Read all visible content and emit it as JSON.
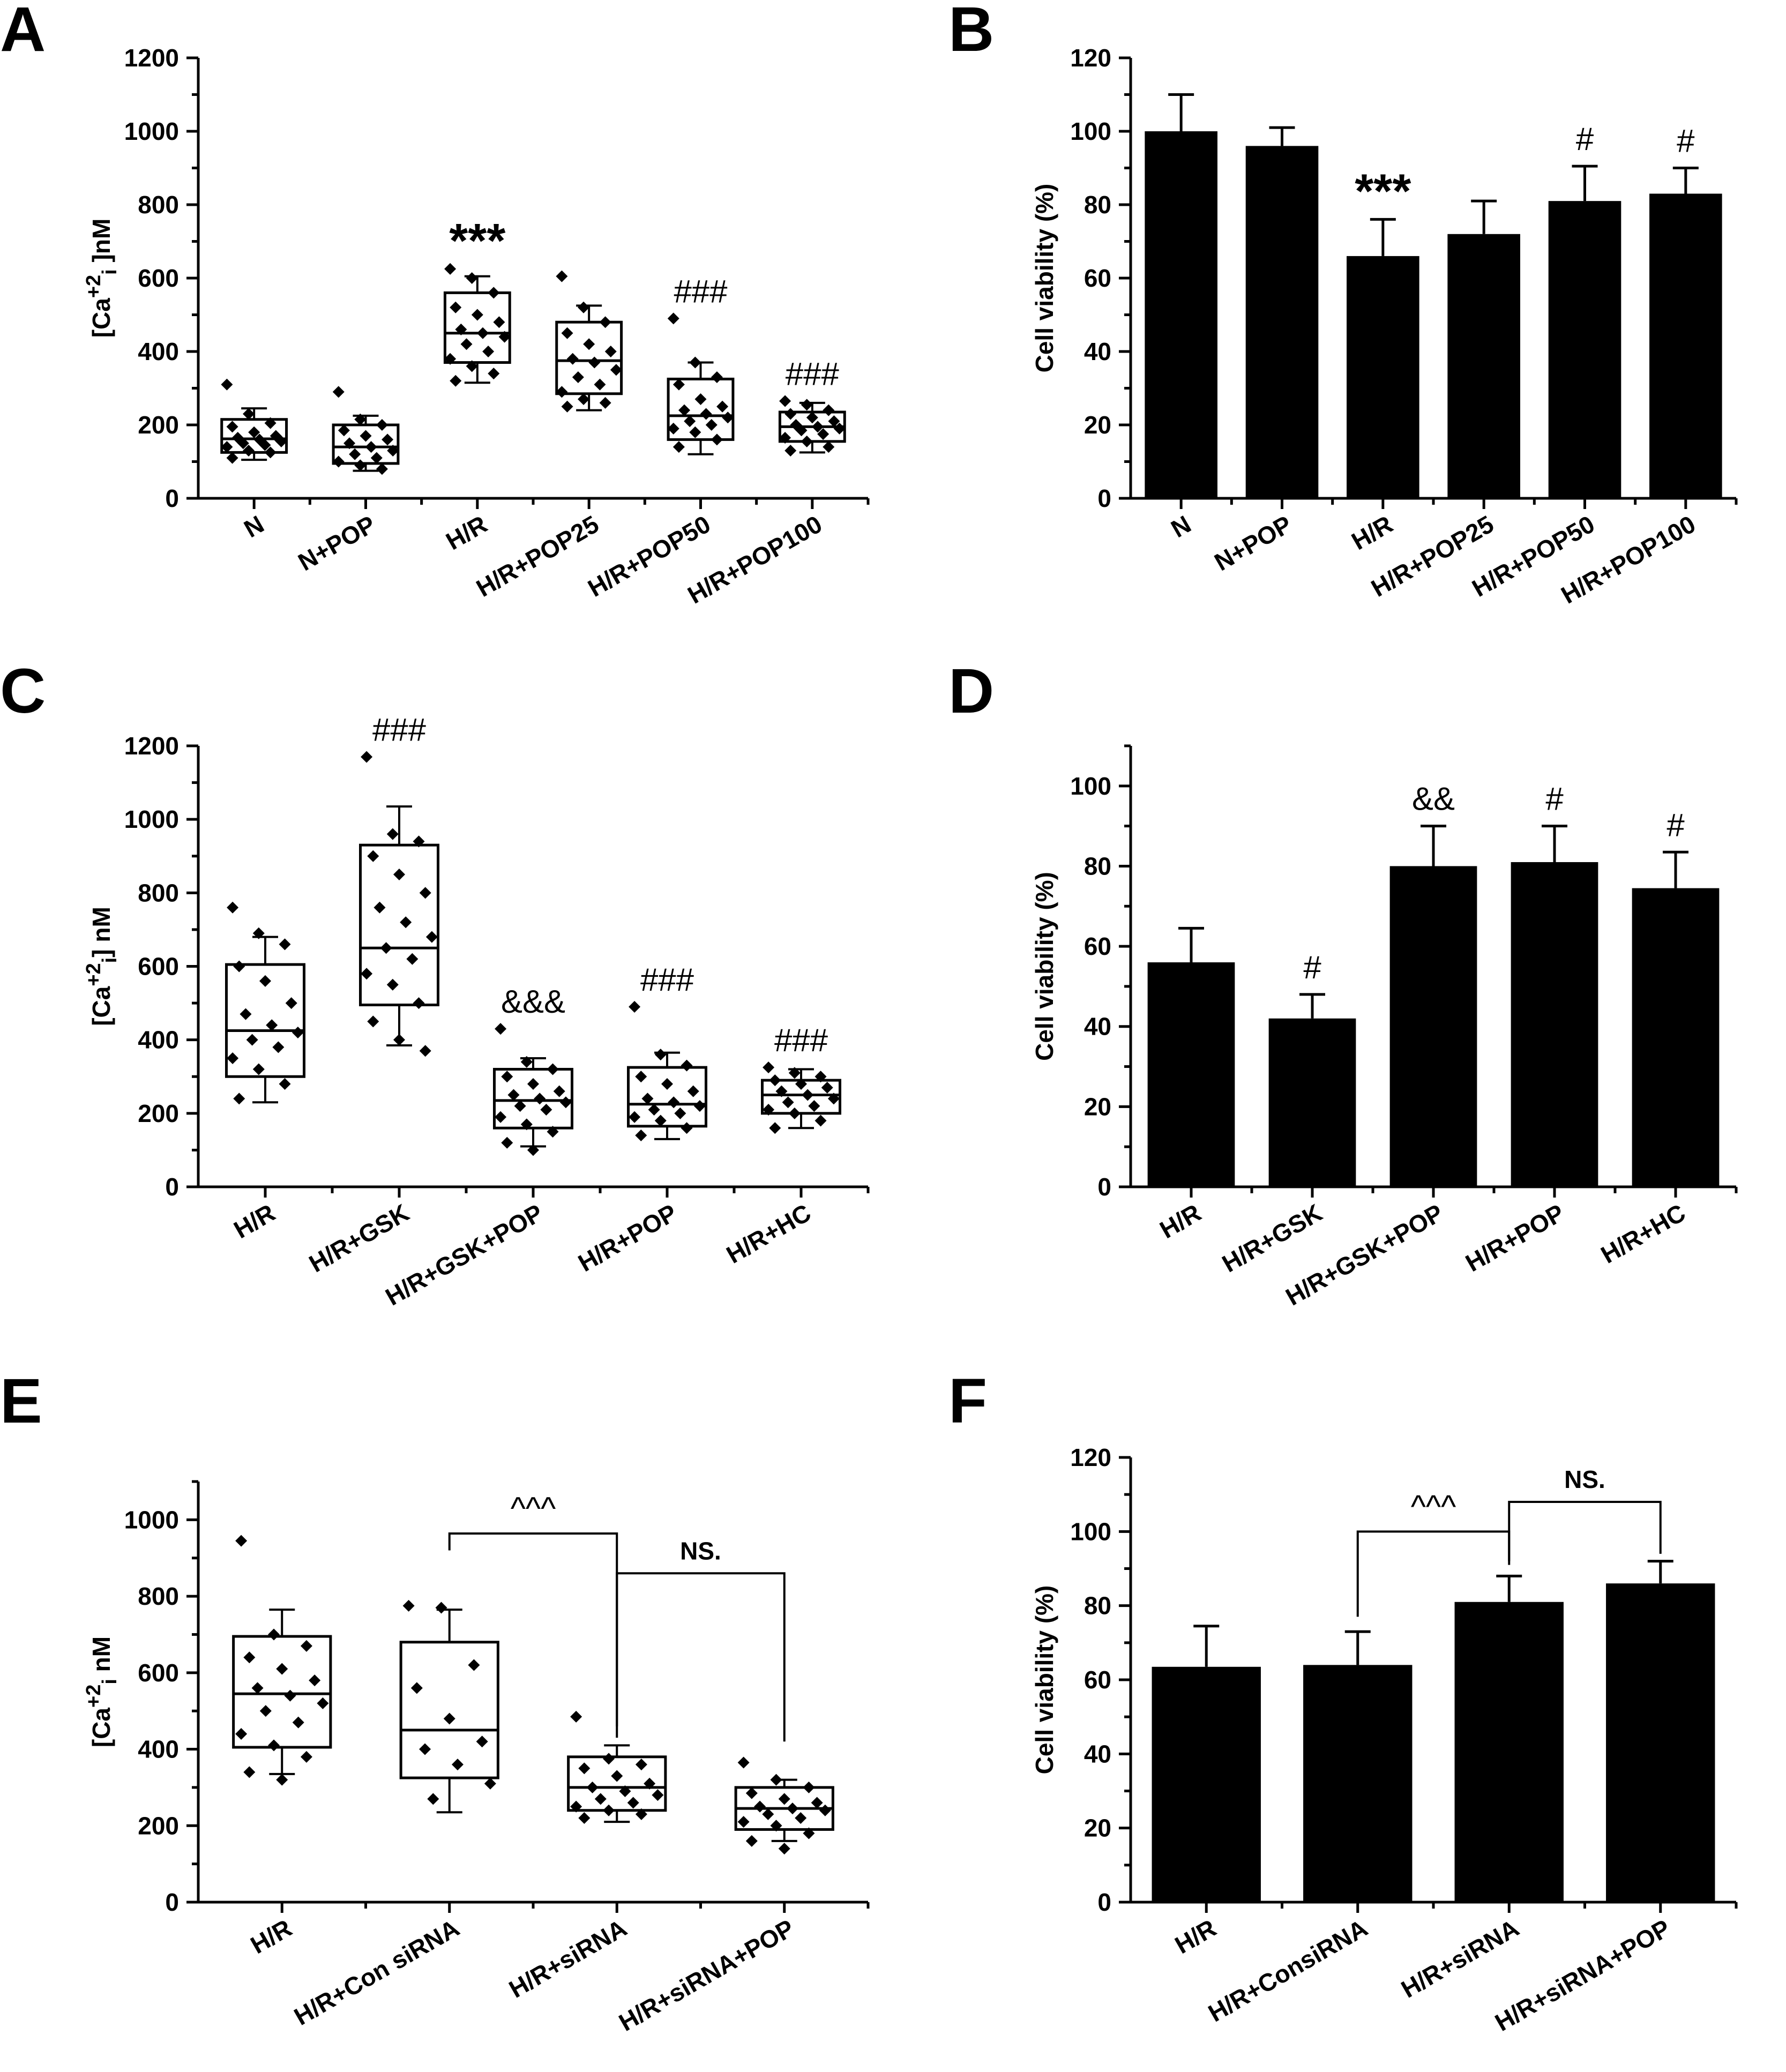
{
  "chart_data": [
    {
      "panel": "A",
      "type": "box",
      "ylabel_main": "[Ca",
      "ylabel_sup": "+2",
      "ylabel_sub": "i",
      "ylabel_tail": " ]nM",
      "ylim": [
        0,
        1200
      ],
      "yticks": [
        0,
        200,
        400,
        600,
        800,
        1000,
        1200
      ],
      "categories": [
        "N",
        "N+POP",
        "H/R",
        "H/R+POP25",
        "H/R+POP50",
        "H/R+POP100"
      ],
      "boxes": [
        {
          "q1": 125,
          "median": 162,
          "q3": 215,
          "lo": 105,
          "hi": 245,
          "points": [
            310,
            230,
            205,
            195,
            180,
            170,
            165,
            160,
            155,
            150,
            145,
            140,
            130,
            125,
            110
          ]
        },
        {
          "q1": 95,
          "median": 140,
          "q3": 200,
          "lo": 75,
          "hi": 225,
          "points": [
            290,
            215,
            200,
            185,
            170,
            160,
            150,
            140,
            130,
            120,
            110,
            100,
            90,
            80
          ]
        },
        {
          "q1": 370,
          "median": 450,
          "q3": 560,
          "lo": 315,
          "hi": 605,
          "points": [
            625,
            600,
            560,
            520,
            500,
            480,
            460,
            450,
            440,
            420,
            400,
            380,
            360,
            340,
            320
          ]
        },
        {
          "q1": 285,
          "median": 375,
          "q3": 480,
          "lo": 240,
          "hi": 525,
          "points": [
            605,
            520,
            480,
            450,
            420,
            400,
            380,
            370,
            350,
            330,
            310,
            290,
            270,
            260,
            250
          ]
        },
        {
          "q1": 160,
          "median": 225,
          "q3": 325,
          "lo": 120,
          "hi": 370,
          "points": [
            490,
            370,
            330,
            310,
            270,
            250,
            240,
            230,
            220,
            210,
            200,
            190,
            180,
            160,
            140
          ]
        },
        {
          "q1": 155,
          "median": 195,
          "q3": 235,
          "lo": 125,
          "hi": 260,
          "points": [
            265,
            255,
            240,
            230,
            220,
            210,
            200,
            195,
            190,
            185,
            175,
            165,
            155,
            140,
            130
          ]
        }
      ],
      "annotations": [
        "",
        "",
        "***",
        "",
        "###",
        "###"
      ]
    },
    {
      "panel": "B",
      "type": "bar",
      "ylabel": "Cell viability (%)",
      "ylim": [
        0,
        120
      ],
      "yticks": [
        0,
        20,
        40,
        60,
        80,
        100,
        120
      ],
      "categories": [
        "N",
        "N+POP",
        "H/R",
        "H/R+POP25",
        "H/R+POP50",
        "H/R+POP100"
      ],
      "values": [
        100,
        96,
        66,
        72,
        81,
        83
      ],
      "errors": [
        10,
        5,
        10,
        9,
        9.5,
        7
      ],
      "annotations": [
        "",
        "",
        "***",
        "",
        "#",
        "#"
      ]
    },
    {
      "panel": "C",
      "type": "box",
      "ylabel_main": "[Ca",
      "ylabel_sup": "+2",
      "ylabel_sub": "i",
      "ylabel_tail": "]  nM",
      "ylim": [
        0,
        1200
      ],
      "yticks": [
        0,
        200,
        400,
        600,
        800,
        1000,
        1200
      ],
      "categories": [
        "H/R",
        "H/R+GSK",
        "H/R+GSK+POP",
        "H/R+POP",
        "H/R+HC"
      ],
      "boxes": [
        {
          "q1": 300,
          "median": 425,
          "q3": 605,
          "lo": 230,
          "hi": 680,
          "points": [
            760,
            690,
            660,
            600,
            560,
            500,
            470,
            440,
            420,
            400,
            380,
            350,
            320,
            280,
            240
          ]
        },
        {
          "q1": 495,
          "median": 650,
          "q3": 930,
          "lo": 385,
          "hi": 1035,
          "points": [
            1170,
            960,
            940,
            900,
            850,
            800,
            760,
            720,
            680,
            650,
            620,
            580,
            550,
            500,
            450,
            400,
            370
          ]
        },
        {
          "q1": 160,
          "median": 235,
          "q3": 320,
          "lo": 110,
          "hi": 350,
          "points": [
            430,
            340,
            320,
            300,
            280,
            260,
            250,
            240,
            230,
            220,
            210,
            190,
            170,
            150,
            120,
            100
          ]
        },
        {
          "q1": 165,
          "median": 225,
          "q3": 325,
          "lo": 130,
          "hi": 365,
          "points": [
            490,
            360,
            330,
            300,
            280,
            260,
            240,
            230,
            220,
            210,
            200,
            190,
            180,
            160,
            140
          ]
        },
        {
          "q1": 200,
          "median": 250,
          "q3": 290,
          "lo": 160,
          "hi": 320,
          "points": [
            325,
            310,
            300,
            290,
            280,
            270,
            260,
            250,
            240,
            230,
            220,
            210,
            200,
            180,
            160
          ]
        }
      ],
      "annotations": [
        "",
        "###",
        "&&&",
        "###",
        "###"
      ]
    },
    {
      "panel": "D",
      "type": "bar",
      "ylabel": "Cell viability (%)",
      "ylim": [
        0,
        110
      ],
      "yticks": [
        0,
        20,
        40,
        60,
        80,
        100
      ],
      "categories": [
        "H/R",
        "H/R+GSK",
        "H/R+GSK+POP",
        "H/R+POP",
        "H/R+HC"
      ],
      "values": [
        56,
        42,
        80,
        81,
        74.5
      ],
      "errors": [
        8.5,
        6,
        10,
        9,
        9
      ],
      "annotations": [
        "",
        "#",
        "&&",
        "#",
        "#"
      ]
    },
    {
      "panel": "E",
      "type": "box",
      "ylabel_main": "[Ca",
      "ylabel_sup": "+2",
      "ylabel_sub": "i",
      "ylabel_tail": "  nM",
      "ylim": [
        0,
        1100
      ],
      "yticks": [
        0,
        200,
        400,
        600,
        800,
        1000
      ],
      "categories": [
        "H/R",
        "H/R+Con siRNA",
        "H/R+siRNA",
        "H/R+siRNA+POP"
      ],
      "boxes": [
        {
          "q1": 405,
          "median": 545,
          "q3": 695,
          "lo": 335,
          "hi": 765,
          "points": [
            945,
            700,
            670,
            640,
            610,
            580,
            560,
            540,
            520,
            500,
            470,
            440,
            410,
            380,
            340,
            320
          ]
        },
        {
          "q1": 325,
          "median": 450,
          "q3": 680,
          "lo": 235,
          "hi": 765,
          "points": [
            775,
            770,
            620,
            560,
            480,
            420,
            400,
            360,
            310,
            270
          ]
        },
        {
          "q1": 240,
          "median": 300,
          "q3": 380,
          "lo": 210,
          "hi": 410,
          "points": [
            485,
            375,
            360,
            350,
            330,
            310,
            300,
            290,
            280,
            270,
            260,
            250,
            240,
            230,
            220
          ]
        },
        {
          "q1": 190,
          "median": 245,
          "q3": 300,
          "lo": 160,
          "hi": 320,
          "points": [
            365,
            320,
            300,
            285,
            270,
            260,
            250,
            245,
            240,
            230,
            220,
            210,
            200,
            180,
            160,
            140
          ]
        }
      ],
      "brackets": [
        {
          "from": 1,
          "to": 2,
          "y_from": 920,
          "y_to": 430,
          "label": "^^^"
        },
        {
          "from": 2,
          "to": 3,
          "y_from": 460,
          "y_to": 420,
          "top": 860,
          "label": "NS."
        }
      ]
    },
    {
      "panel": "F",
      "type": "bar",
      "ylabel": "Cell viability (%)",
      "ylim": [
        0,
        120
      ],
      "yticks": [
        0,
        20,
        40,
        60,
        80,
        100,
        120
      ],
      "categories": [
        "H/R",
        "H/R+ConsiRNA",
        "H/R+siRNA",
        "H/R+siRNA+POP"
      ],
      "values": [
        63.5,
        64,
        81,
        86
      ],
      "errors": [
        11,
        9,
        7,
        6
      ],
      "brackets": [
        {
          "from": 1,
          "to": 2,
          "y_from": 77,
          "y_to": 91,
          "top": 100,
          "label": "^^^"
        },
        {
          "from": 2,
          "to": 3,
          "y_from": 92,
          "y_to": 94,
          "top": 108,
          "label": "NS."
        }
      ]
    }
  ]
}
